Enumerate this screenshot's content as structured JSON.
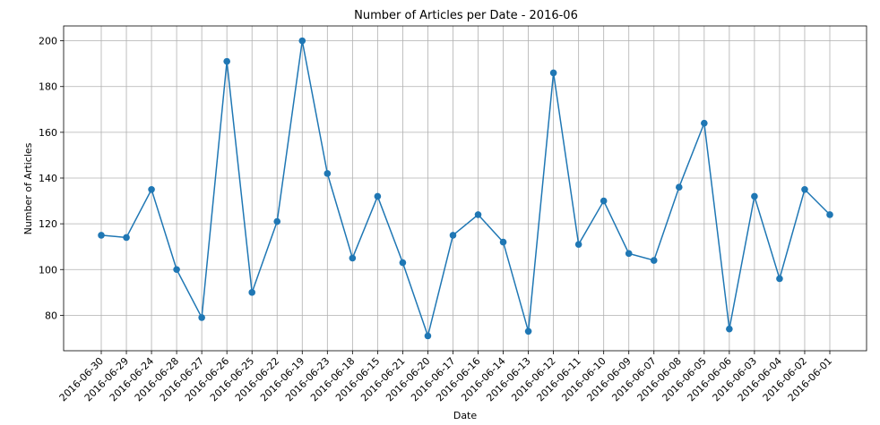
{
  "chart_data": {
    "type": "line",
    "title": "Number of Articles per Date - 2016-06",
    "xlabel": "Date",
    "ylabel": "Number of Articles",
    "categories": [
      "2016-06-30",
      "2016-06-29",
      "2016-06-24",
      "2016-06-28",
      "2016-06-27",
      "2016-06-26",
      "2016-06-25",
      "2016-06-22",
      "2016-06-19",
      "2016-06-23",
      "2016-06-18",
      "2016-06-15",
      "2016-06-21",
      "2016-06-20",
      "2016-06-17",
      "2016-06-16",
      "2016-06-14",
      "2016-06-13",
      "2016-06-12",
      "2016-06-11",
      "2016-06-10",
      "2016-06-09",
      "2016-06-07",
      "2016-06-08",
      "2016-06-05",
      "2016-06-06",
      "2016-06-03",
      "2016-06-04",
      "2016-06-02",
      "2016-06-01"
    ],
    "values": [
      115,
      114,
      135,
      100,
      79,
      191,
      90,
      121,
      200,
      142,
      105,
      132,
      103,
      71,
      115,
      124,
      112,
      73,
      186,
      111,
      130,
      107,
      104,
      136,
      164,
      74,
      132,
      96,
      135,
      124
    ],
    "ylim": [
      64.5,
      206.5
    ],
    "yticks": [
      80,
      100,
      120,
      140,
      160,
      180,
      200
    ],
    "grid": true,
    "color": "#1f77b4"
  }
}
